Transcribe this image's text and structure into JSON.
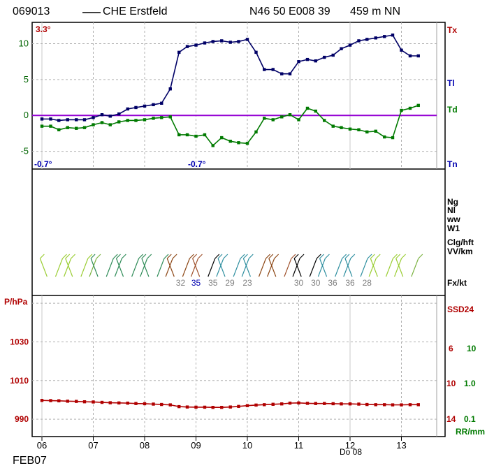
{
  "header": {
    "station_id": "069013",
    "station_name": "CHE Erstfeld",
    "coords": "N46 50 E008 39",
    "elevation": "459 m NN"
  },
  "footer": {
    "month": "FEB07",
    "day_label": "Do 08"
  },
  "right_labels": {
    "tx": "Tx",
    "tl": "Tl",
    "td": "Td",
    "tn": "Tn",
    "ng": "Ng",
    "nl": "Nl",
    "ww": "ww",
    "w1": "W1",
    "clg": "Clg/hft",
    "vv": "VV/km",
    "fx": "Fx/kt",
    "ssd": "SSD24",
    "rr": "RR/mm",
    "ssd_ticks": [
      "6",
      "10",
      "14"
    ],
    "rr_ticks": [
      "10",
      "1.0",
      "0.1"
    ]
  },
  "temp_annotations": {
    "tx_top": "3.3°",
    "tn_left": "-0.7°",
    "tn_mid": "-0.7°"
  },
  "pressure_label": "P/hPa",
  "gust_labels": [
    {
      "x": 8.7,
      "text": "32",
      "color": "#808080"
    },
    {
      "x": 9.0,
      "text": "35",
      "color": "#0000b0"
    },
    {
      "x": 9.33,
      "text": "35",
      "color": "#808080"
    },
    {
      "x": 9.66,
      "text": "29",
      "color": "#808080"
    },
    {
      "x": 10.0,
      "text": "23",
      "color": "#808080"
    },
    {
      "x": 11.0,
      "text": "30",
      "color": "#808080"
    },
    {
      "x": 11.33,
      "text": "30",
      "color": "#808080"
    },
    {
      "x": 11.66,
      "text": "36",
      "color": "#808080"
    },
    {
      "x": 12.0,
      "text": "36",
      "color": "#808080"
    },
    {
      "x": 12.33,
      "text": "28",
      "color": "#808080"
    }
  ],
  "colors": {
    "tl": "#000066",
    "td": "#007a00",
    "pressure": "#b00000",
    "zero_line": "#9400d3",
    "grid": "#b0b0b0"
  },
  "chart_data": [
    {
      "type": "line",
      "name": "temperature",
      "xlim": [
        5.8,
        13.9
      ],
      "ylim": [
        -6.5,
        12
      ],
      "x_ticks": [
        6,
        7,
        8,
        9,
        10,
        11,
        12,
        13
      ],
      "x_tick_labels": [
        "06",
        "07",
        "08",
        "09",
        "10",
        "11",
        "12",
        "13"
      ],
      "y_ticks": [
        -5,
        0,
        5,
        10
      ],
      "y_tick_labels": [
        "-5",
        "0",
        "5",
        "10"
      ],
      "series": [
        {
          "label": "Tl",
          "x": [
            6.0,
            6.17,
            6.33,
            6.5,
            6.67,
            6.83,
            7.0,
            7.17,
            7.33,
            7.5,
            7.67,
            7.83,
            8.0,
            8.17,
            8.33,
            8.5,
            8.67,
            8.83,
            9.0,
            9.17,
            9.33,
            9.5,
            9.67,
            9.83,
            10.0,
            10.17,
            10.33,
            10.5,
            10.67,
            10.83,
            11.0,
            11.17,
            11.33,
            11.5,
            11.67,
            11.83,
            12.0,
            12.17,
            12.33,
            12.5,
            12.67,
            12.83,
            13.0,
            13.17,
            13.33
          ],
          "y": [
            -0.5,
            -0.5,
            -0.7,
            -0.6,
            -0.6,
            -0.6,
            -0.3,
            0.1,
            -0.1,
            0.2,
            0.9,
            1.1,
            1.3,
            1.5,
            1.7,
            3.7,
            8.8,
            9.6,
            9.8,
            10.1,
            10.3,
            10.4,
            10.2,
            10.3,
            10.6,
            8.8,
            6.4,
            6.4,
            5.8,
            5.8,
            7.5,
            7.8,
            7.6,
            8.1,
            8.4,
            9.3,
            9.8,
            10.4,
            10.6,
            10.8,
            11.0,
            11.2,
            9.1,
            8.3,
            8.3
          ]
        },
        {
          "label": "Td",
          "x": [
            6.0,
            6.17,
            6.33,
            6.5,
            6.67,
            6.83,
            7.0,
            7.17,
            7.33,
            7.5,
            7.67,
            7.83,
            8.0,
            8.17,
            8.33,
            8.5,
            8.67,
            8.83,
            9.0,
            9.17,
            9.33,
            9.5,
            9.67,
            9.83,
            10.0,
            10.17,
            10.33,
            10.5,
            10.67,
            10.83,
            11.0,
            11.17,
            11.33,
            11.5,
            11.67,
            11.83,
            12.0,
            12.17,
            12.33,
            12.5,
            12.67,
            12.83,
            13.0,
            13.17,
            13.33
          ],
          "y": [
            -1.5,
            -1.5,
            -2.0,
            -1.7,
            -1.8,
            -1.7,
            -1.3,
            -1.0,
            -1.3,
            -0.9,
            -0.7,
            -0.7,
            -0.6,
            -0.4,
            -0.3,
            -0.2,
            -2.7,
            -2.7,
            -2.9,
            -2.7,
            -4.2,
            -3.1,
            -3.6,
            -3.8,
            -3.9,
            -2.3,
            -0.4,
            -0.6,
            -0.2,
            0.1,
            -0.6,
            1.0,
            0.6,
            -0.7,
            -1.5,
            -1.7,
            -1.9,
            -2.0,
            -2.3,
            -2.2,
            -3.0,
            -3.1,
            0.7,
            1.0,
            1.4
          ]
        }
      ]
    },
    {
      "type": "line",
      "name": "pressure",
      "xlim": [
        5.8,
        13.9
      ],
      "ylim": [
        981,
        1054
      ],
      "y_ticks": [
        990,
        1010,
        1030
      ],
      "y_tick_labels": [
        "990",
        "1010",
        "1030"
      ],
      "series": [
        {
          "label": "P",
          "x": [
            6.0,
            6.17,
            6.33,
            6.5,
            6.67,
            6.83,
            7.0,
            7.17,
            7.33,
            7.5,
            7.67,
            7.83,
            8.0,
            8.17,
            8.33,
            8.5,
            8.67,
            8.83,
            9.0,
            9.17,
            9.33,
            9.5,
            9.67,
            9.83,
            10.0,
            10.17,
            10.33,
            10.5,
            10.67,
            10.83,
            11.0,
            11.17,
            11.33,
            11.5,
            11.67,
            11.83,
            12.0,
            12.17,
            12.33,
            12.5,
            12.67,
            12.83,
            13.0,
            13.17,
            13.33
          ],
          "y": [
            999.7,
            999.6,
            999.5,
            999.3,
            999.2,
            999.0,
            998.9,
            998.7,
            998.5,
            998.4,
            998.3,
            998.1,
            998.0,
            997.8,
            997.6,
            997.4,
            996.5,
            996.3,
            996.2,
            996.2,
            996.1,
            996.1,
            996.3,
            996.6,
            997.0,
            997.3,
            997.5,
            997.7,
            997.9,
            998.3,
            998.4,
            998.2,
            998.1,
            998.1,
            998.0,
            997.9,
            997.9,
            997.8,
            997.6,
            997.5,
            997.5,
            997.4,
            997.4,
            997.5,
            997.5
          ]
        }
      ]
    }
  ]
}
